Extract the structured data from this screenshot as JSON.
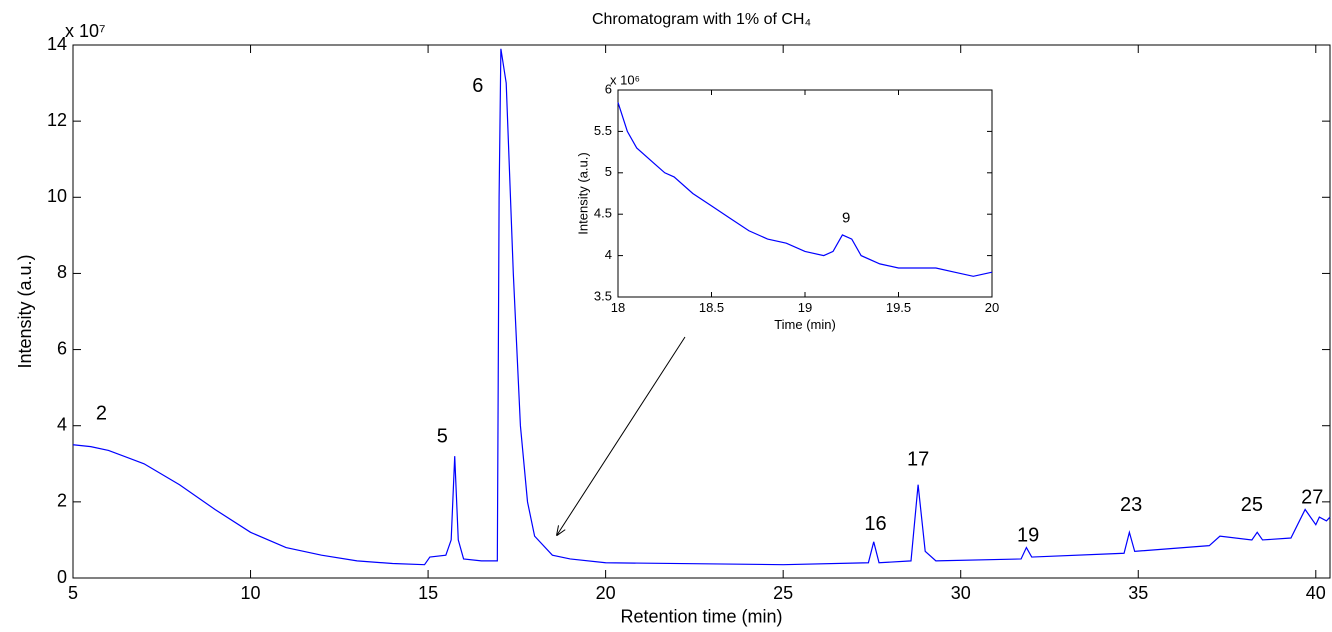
{
  "chart_data": [
    {
      "type": "line",
      "title": "Chromatogram with 1% of CH₄",
      "x_label": "Retention time (min)",
      "y_label": "Intensity (a.u.)",
      "y_exponent": "x 10⁷",
      "xlim": [
        5,
        40.4
      ],
      "ylim": [
        0,
        14
      ],
      "xticks": [
        5,
        10,
        15,
        20,
        25,
        30,
        35,
        40
      ],
      "yticks": [
        0,
        2,
        4,
        6,
        8,
        10,
        12,
        14
      ],
      "annotations": [
        "2",
        "5",
        "6",
        "16",
        "17",
        "19",
        "23",
        "25",
        "27"
      ],
      "series": [
        {
          "color": "#0000ff",
          "x": [
            5,
            5.5,
            6,
            7,
            8,
            9,
            10,
            11,
            12,
            13,
            14,
            14.9,
            15.05,
            15.5,
            15.65,
            15.75,
            15.85,
            16.0,
            16.5,
            16.95,
            17.0,
            17.05,
            17.2,
            17.4,
            17.6,
            17.8,
            18,
            18.5,
            19,
            20,
            25,
            27.4,
            27.55,
            27.7,
            28.6,
            28.8,
            29.0,
            29.3,
            31.7,
            31.85,
            32.0,
            34.6,
            34.75,
            34.9,
            37.0,
            37.3,
            38.2,
            38.35,
            38.5,
            39.3,
            39.7,
            40.0,
            40.1,
            40.3,
            40.4
          ],
          "values": [
            3.5,
            3.45,
            3.35,
            3.0,
            2.45,
            1.8,
            1.2,
            0.8,
            0.6,
            0.45,
            0.38,
            0.35,
            0.55,
            0.6,
            1.0,
            3.2,
            1.0,
            0.5,
            0.45,
            0.45,
            10,
            13.9,
            13.0,
            8,
            4,
            2,
            1.1,
            0.6,
            0.5,
            0.4,
            0.35,
            0.4,
            0.95,
            0.4,
            0.45,
            2.45,
            0.7,
            0.45,
            0.5,
            0.8,
            0.55,
            0.65,
            1.2,
            0.7,
            0.85,
            1.1,
            1.0,
            1.2,
            1.0,
            1.05,
            1.8,
            1.4,
            1.6,
            1.5,
            1.6
          ]
        }
      ]
    },
    {
      "type": "line",
      "x_label": "Time (min)",
      "y_label": "Intensity (a.u.)",
      "y_exponent": "x 10⁶",
      "xlim": [
        18,
        20
      ],
      "ylim": [
        3.5,
        6
      ],
      "xticks": [
        18,
        18.5,
        19,
        19.5,
        20
      ],
      "yticks": [
        3.5,
        4,
        4.5,
        5,
        5.5,
        6
      ],
      "annotations": [
        "9"
      ],
      "series": [
        {
          "color": "#0000ff",
          "x": [
            18,
            18.05,
            18.1,
            18.2,
            18.25,
            18.3,
            18.4,
            18.5,
            18.6,
            18.7,
            18.8,
            18.9,
            19.0,
            19.1,
            19.15,
            19.2,
            19.25,
            19.3,
            19.4,
            19.5,
            19.7,
            19.8,
            19.9,
            20
          ],
          "values": [
            5.85,
            5.5,
            5.3,
            5.1,
            5.0,
            4.95,
            4.75,
            4.6,
            4.45,
            4.3,
            4.2,
            4.15,
            4.05,
            4.0,
            4.05,
            4.25,
            4.2,
            4.0,
            3.9,
            3.85,
            3.85,
            3.8,
            3.75,
            3.8
          ]
        }
      ]
    }
  ]
}
